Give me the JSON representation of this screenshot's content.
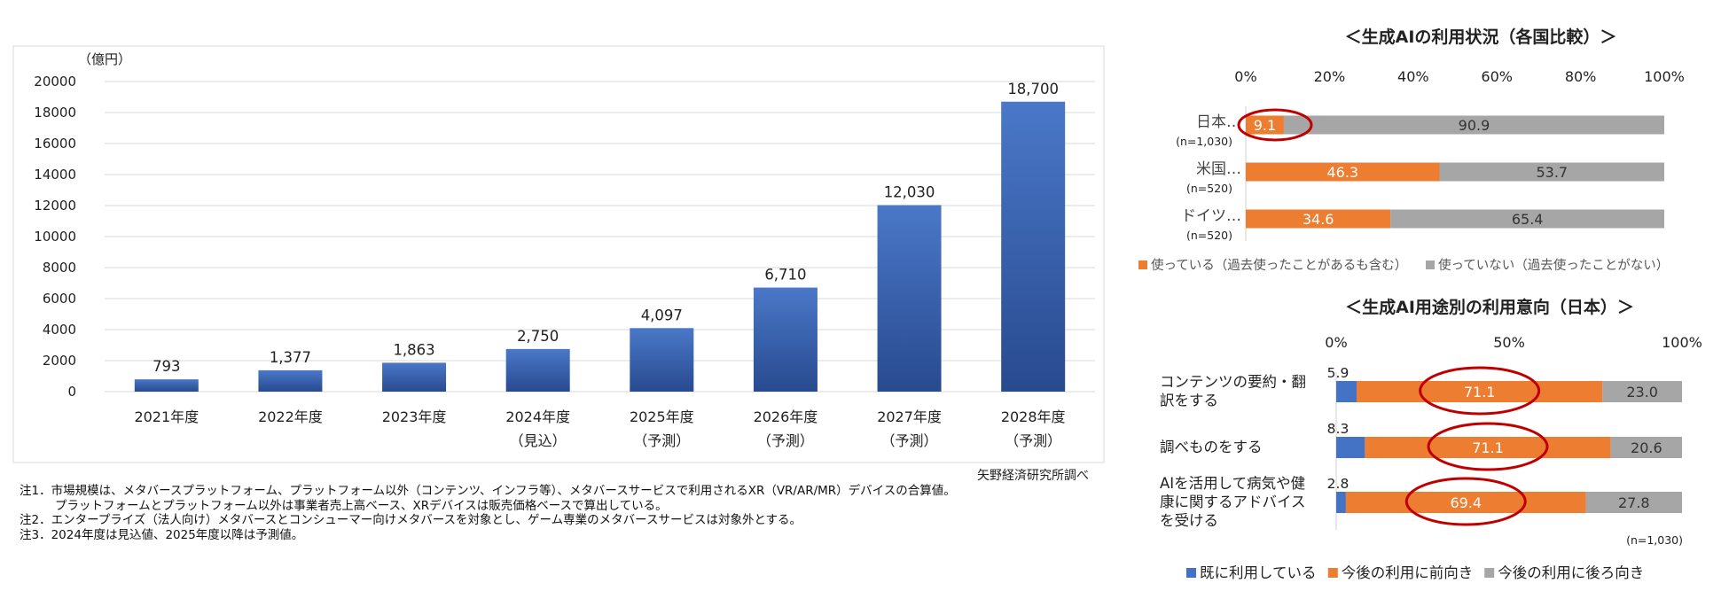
{
  "chart_data": [
    {
      "type": "bar",
      "ylabel": "（億円）",
      "ylim": [
        0,
        20000
      ],
      "yticks": [
        0,
        2000,
        4000,
        6000,
        8000,
        10000,
        12000,
        14000,
        16000,
        18000,
        20000
      ],
      "yticks_labels": [
        "0",
        "2000",
        "4000",
        "6000",
        "8000",
        "10000",
        "12000",
        "14000",
        "16000",
        "18000",
        "20000"
      ],
      "categories": [
        "2021年度",
        "2022年度",
        "2023年度",
        "2024年度",
        "2025年度",
        "2026年度",
        "2027年度",
        "2028年度"
      ],
      "category_sub": [
        "",
        "",
        "",
        "（見込）",
        "（予測）",
        "（予測）",
        "（予測）",
        "（予測）"
      ],
      "values": [
        793,
        1377,
        1863,
        2750,
        4097,
        6710,
        12030,
        18700
      ],
      "value_labels": [
        "793",
        "1,377",
        "1,863",
        "2,750",
        "4,097",
        "6,710",
        "12,030",
        "18,700"
      ],
      "grid": true,
      "colors": {
        "bar_top": "#4a78c8",
        "bar_bottom": "#284a8f",
        "grid": "#d9d9d9"
      },
      "source": "矢野経済研究所調べ"
    },
    {
      "type": "bar",
      "orientation": "horizontal",
      "stacked": true,
      "title": "＜生成AIの利用状況（各国比較）＞",
      "xlim": [
        0,
        100
      ],
      "xticks_labels": [
        "0%",
        "20%",
        "40%",
        "60%",
        "80%",
        "100%"
      ],
      "categories": [
        "日本…",
        "米国…",
        "ドイツ…"
      ],
      "category_sub": [
        "(n=1,030)",
        "(n=520)",
        "(n=520)"
      ],
      "series": [
        {
          "name": "使っている（過去使ったことがあるも含む）",
          "values": [
            9.1,
            46.3,
            34.6
          ],
          "color": "#ed7d31"
        },
        {
          "name": "使っていない（過去使ったことがない）",
          "values": [
            90.9,
            53.7,
            65.4
          ],
          "color": "#a6a6a6"
        }
      ],
      "legend": "bottom",
      "highlight_circle": "日本 9.1"
    },
    {
      "type": "bar",
      "orientation": "horizontal",
      "stacked": true,
      "title": "＜生成AI用途別の利用意向（日本）＞",
      "xlim": [
        0,
        100
      ],
      "xticks_labels": [
        "0%",
        "50%",
        "100%"
      ],
      "categories": [
        "コンテンツの要約・翻訳をする",
        "調べものをする",
        "AIを活用して病気や健康に関するアドバイスを受ける"
      ],
      "category_lines": [
        [
          "コンテンツの要約・翻",
          "訳をする"
        ],
        [
          "調べものをする"
        ],
        [
          "AIを活用して病気や健",
          "康に関するアドバイス",
          "を受ける"
        ]
      ],
      "series": [
        {
          "name": "既に利用している",
          "values": [
            5.9,
            8.3,
            2.8
          ],
          "color": "#4472c4"
        },
        {
          "name": "今後の利用に前向き",
          "values": [
            71.1,
            71.1,
            69.4
          ],
          "color": "#ed7d31"
        },
        {
          "name": "今後の利用に後ろ向き",
          "values": [
            23.0,
            20.6,
            27.8
          ],
          "color": "#a6a6a6"
        }
      ],
      "value_labels": [
        [
          "5.9",
          "71.1",
          "23.0"
        ],
        [
          "8.3",
          "71.1",
          "20.6"
        ],
        [
          "2.8",
          "69.4",
          "27.8"
        ]
      ],
      "n_note": "(n=1,030)",
      "legend": "bottom"
    }
  ],
  "notes": [
    "注1．市場規模は、メタバースプラットフォーム、プラットフォーム以外（コンテンツ、インフラ等）、メタバースサービスで利用されるXR（VR/AR/MR）デバイスの合算値。",
    "プラットフォームとプラットフォーム以外は事業者売上高ベース、XRデバイスは販売価格ベースで算出している。",
    "注2．エンタープライズ（法人向け）メタバースとコンシューマー向けメタバースを対象とし、ゲーム専業のメタバースサービスは対象外とする。",
    "注3．2024年度は見込値、2025年度以降は予測値。"
  ]
}
